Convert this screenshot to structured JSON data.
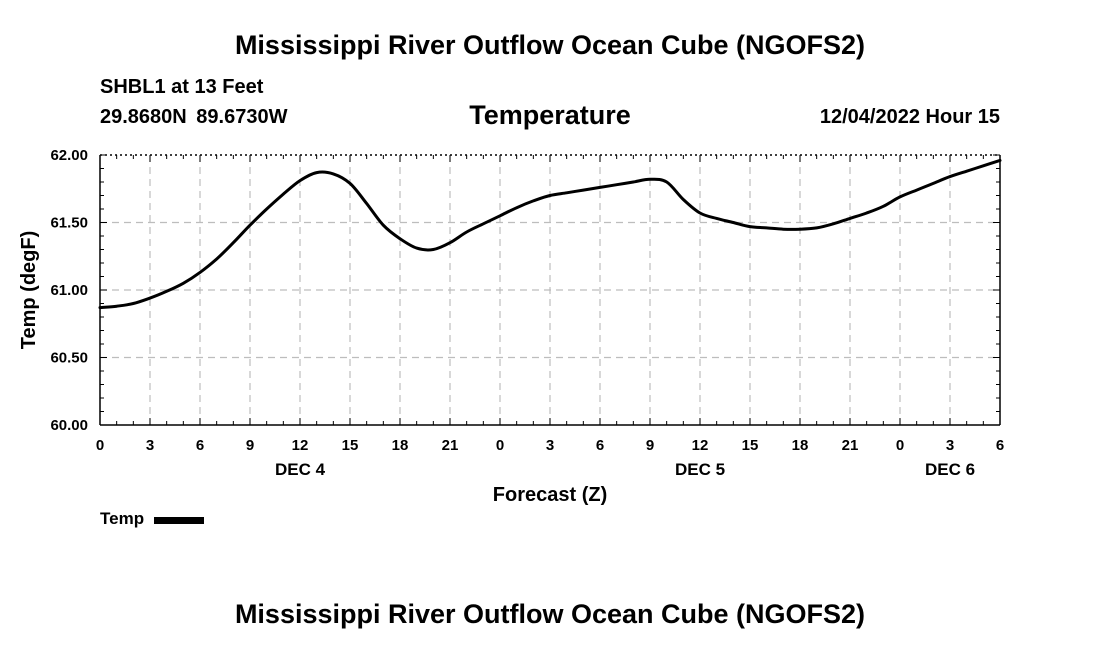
{
  "chart_data": {
    "type": "line",
    "title": "Mississippi River Outflow Ocean Cube (NGOFS2)",
    "footer_title": "Mississippi River Outflow Ocean Cube (NGOFS2)",
    "station": "SHBL1 at 13 Feet",
    "coordinates": "29.8680N  89.6730W",
    "panel_title": "Temperature",
    "datetime": "12/04/2022 Hour 15",
    "xlabel": "Forecast (Z)",
    "ylabel": "Temp (degF)",
    "x_range_hours": [
      0,
      54
    ],
    "x_ticks": [
      {
        "h": 0,
        "label": "0"
      },
      {
        "h": 3,
        "label": "3"
      },
      {
        "h": 6,
        "label": "6"
      },
      {
        "h": 9,
        "label": "9"
      },
      {
        "h": 12,
        "label": "12"
      },
      {
        "h": 15,
        "label": "15"
      },
      {
        "h": 18,
        "label": "18"
      },
      {
        "h": 21,
        "label": "21"
      },
      {
        "h": 24,
        "label": "0"
      },
      {
        "h": 27,
        "label": "3"
      },
      {
        "h": 30,
        "label": "6"
      },
      {
        "h": 33,
        "label": "9"
      },
      {
        "h": 36,
        "label": "12"
      },
      {
        "h": 39,
        "label": "15"
      },
      {
        "h": 42,
        "label": "18"
      },
      {
        "h": 45,
        "label": "21"
      },
      {
        "h": 48,
        "label": "0"
      },
      {
        "h": 51,
        "label": "3"
      },
      {
        "h": 54,
        "label": "6"
      }
    ],
    "day_labels": [
      {
        "h": 12,
        "label": "DEC 4"
      },
      {
        "h": 36,
        "label": "DEC 5"
      },
      {
        "h": 51,
        "label": "DEC 6"
      }
    ],
    "ylim": [
      60.0,
      62.0
    ],
    "y_ticks": [
      "60.00",
      "60.50",
      "61.00",
      "61.50",
      "62.00"
    ],
    "grid": true,
    "legend": "bottom-left",
    "series": [
      {
        "name": "Temp",
        "color": "#000000",
        "x": [
          0,
          1,
          2,
          3,
          4,
          5,
          6,
          7,
          8,
          9,
          10,
          11,
          12,
          13,
          14,
          15,
          16,
          17,
          18,
          19,
          20,
          21,
          22,
          23,
          24,
          25,
          26,
          27,
          28,
          29,
          30,
          31,
          32,
          33,
          34,
          35,
          36,
          37,
          38,
          39,
          40,
          41,
          42,
          43,
          44,
          45,
          46,
          47,
          48,
          49,
          50,
          51,
          52,
          53,
          54
        ],
        "values": [
          60.87,
          60.88,
          60.9,
          60.94,
          60.99,
          61.05,
          61.13,
          61.23,
          61.35,
          61.48,
          61.6,
          61.71,
          61.81,
          61.87,
          61.86,
          61.79,
          61.64,
          61.48,
          61.38,
          61.31,
          61.3,
          61.35,
          61.43,
          61.49,
          61.55,
          61.61,
          61.66,
          61.7,
          61.72,
          61.74,
          61.76,
          61.78,
          61.8,
          61.82,
          61.8,
          61.67,
          61.57,
          61.53,
          61.5,
          61.47,
          61.46,
          61.45,
          61.45,
          61.46,
          61.49,
          61.53,
          61.57,
          61.62,
          61.69,
          61.74,
          61.79,
          61.84,
          61.88,
          61.92,
          61.96
        ]
      }
    ]
  }
}
